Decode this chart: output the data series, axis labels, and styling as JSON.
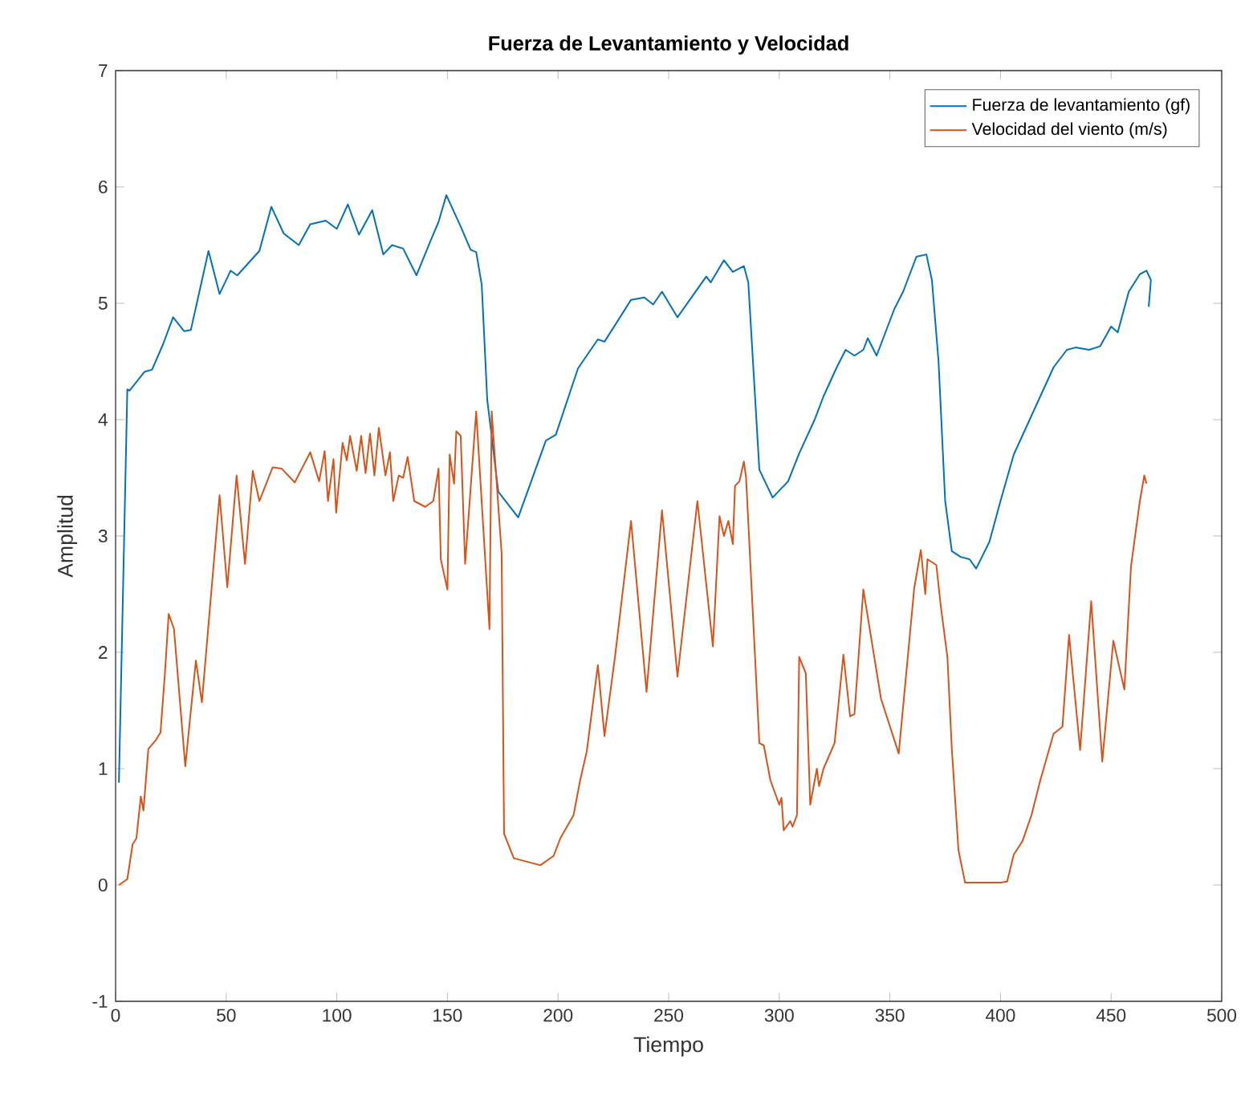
{
  "chart_data": {
    "type": "line",
    "title": "Fuerza de Levantamiento y Velocidad",
    "xlabel": "Tiempo",
    "ylabel": "Amplitud",
    "xlim": [
      0,
      500
    ],
    "ylim": [
      -1,
      7
    ],
    "xticks": [
      0,
      50,
      100,
      150,
      200,
      250,
      300,
      350,
      400,
      450,
      500
    ],
    "yticks": [
      -1,
      0,
      1,
      2,
      3,
      4,
      5,
      6,
      7
    ],
    "legend": "top right",
    "grid": false,
    "marker": "none",
    "line_style": "solid",
    "series": [
      {
        "name": "Fuerza de levantamiento (gf)",
        "color": "#0072bd",
        "x": [
          1.5,
          5.3,
          6.3,
          13,
          16.5,
          21.5,
          26,
          31,
          34,
          42,
          47,
          52,
          55,
          65,
          70.4,
          76,
          82.8,
          88,
          95,
          100,
          105,
          110,
          116,
          121,
          125,
          130,
          136,
          142,
          146,
          149.5,
          156,
          160.5,
          163,
          165.5,
          168,
          173,
          182,
          194.5,
          199,
          209,
          218,
          221,
          233,
          239,
          243,
          247,
          254,
          267,
          269,
          275,
          279,
          284,
          286,
          291,
          297,
          304,
          309,
          316,
          320,
          326,
          330,
          334,
          338,
          340,
          344,
          348,
          352,
          356,
          362,
          366.5,
          369,
          372,
          375,
          378,
          382,
          386,
          389,
          395,
          400,
          406,
          412,
          418,
          424,
          430,
          434,
          440,
          445,
          450,
          453,
          458,
          463,
          466,
          468,
          467
        ],
        "values": [
          0.88,
          4.26,
          4.25,
          4.41,
          4.43,
          4.65,
          4.88,
          4.76,
          4.77,
          5.45,
          5.08,
          5.28,
          5.24,
          5.45,
          5.83,
          5.6,
          5.5,
          5.68,
          5.71,
          5.64,
          5.85,
          5.59,
          5.8,
          5.42,
          5.5,
          5.47,
          5.24,
          5.52,
          5.7,
          5.93,
          5.66,
          5.46,
          5.44,
          5.16,
          4.17,
          3.38,
          3.16,
          3.82,
          3.87,
          4.44,
          4.69,
          4.67,
          5.03,
          5.05,
          4.99,
          5.1,
          4.88,
          5.23,
          5.18,
          5.37,
          5.27,
          5.32,
          5.18,
          3.57,
          3.33,
          3.47,
          3.71,
          4.0,
          4.2,
          4.45,
          4.6,
          4.55,
          4.6,
          4.7,
          4.55,
          4.75,
          4.95,
          5.1,
          5.4,
          5.42,
          5.2,
          4.5,
          3.3,
          2.87,
          2.82,
          2.8,
          2.72,
          2.95,
          3.3,
          3.7,
          3.95,
          4.2,
          4.45,
          4.6,
          4.62,
          4.6,
          4.63,
          4.8,
          4.75,
          5.1,
          5.25,
          5.28,
          5.2,
          4.97
        ]
      },
      {
        "name": "Velocidad del viento (m/s)",
        "color": "#d95319",
        "x": [
          1.5,
          5.3,
          7.7,
          9.4,
          11.4,
          12.6,
          14.8,
          18,
          20.3,
          22.3,
          24,
          26.4,
          31.5,
          36.3,
          39,
          47,
          50.5,
          54.7,
          58.5,
          62,
          65,
          71,
          75,
          81,
          88,
          92,
          94.5,
          96,
          98.5,
          99.7,
          102.6,
          104.5,
          106,
          109,
          111,
          113,
          115,
          117,
          119,
          122,
          124,
          125.5,
          128,
          130,
          132,
          135,
          140,
          143.6,
          146,
          147,
          150,
          151,
          153,
          154,
          156,
          158,
          163,
          169,
          170,
          174.5,
          175.6,
          180,
          192,
          198,
          201,
          204,
          207,
          210,
          213,
          218,
          221,
          226,
          233,
          240,
          247,
          254,
          263,
          270,
          273,
          275,
          277,
          279,
          280,
          282,
          284,
          285,
          291,
          293,
          296,
          300,
          301,
          302,
          305,
          306,
          308,
          309,
          312,
          314,
          317,
          318,
          320,
          325,
          329,
          332,
          334,
          338,
          346,
          354,
          361,
          364,
          366,
          367,
          371,
          373,
          376,
          378,
          381,
          384,
          400,
          403,
          406,
          410,
          414,
          418,
          424,
          428,
          431,
          436,
          441,
          446,
          451,
          456,
          459,
          463,
          465,
          466
        ],
        "values": [
          0.0,
          0.05,
          0.35,
          0.4,
          0.76,
          0.64,
          1.17,
          1.24,
          1.31,
          1.82,
          2.33,
          2.2,
          1.02,
          1.93,
          1.57,
          3.35,
          2.56,
          3.52,
          2.76,
          3.56,
          3.3,
          3.59,
          3.58,
          3.46,
          3.72,
          3.47,
          3.73,
          3.3,
          3.66,
          3.2,
          3.8,
          3.65,
          3.86,
          3.56,
          3.86,
          3.54,
          3.88,
          3.52,
          3.93,
          3.52,
          3.72,
          3.3,
          3.52,
          3.5,
          3.68,
          3.3,
          3.25,
          3.3,
          3.58,
          2.8,
          2.54,
          3.7,
          3.45,
          3.9,
          3.86,
          2.76,
          4.07,
          2.2,
          4.07,
          2.85,
          0.44,
          0.23,
          0.17,
          0.25,
          0.4,
          0.5,
          0.6,
          0.9,
          1.15,
          1.89,
          1.28,
          2.0,
          3.13,
          1.66,
          3.22,
          1.79,
          3.3,
          2.05,
          3.17,
          3.0,
          3.13,
          2.93,
          3.43,
          3.47,
          3.64,
          3.5,
          1.22,
          1.2,
          0.9,
          0.69,
          0.75,
          0.47,
          0.55,
          0.5,
          0.6,
          1.96,
          1.82,
          0.69,
          1.0,
          0.85,
          1.0,
          1.22,
          1.98,
          1.45,
          1.47,
          2.54,
          1.6,
          1.13,
          2.55,
          2.88,
          2.5,
          2.8,
          2.75,
          2.4,
          1.96,
          1.17,
          0.3,
          0.02,
          0.02,
          0.03,
          0.26,
          0.38,
          0.6,
          0.9,
          1.3,
          1.36,
          2.15,
          1.16,
          2.44,
          1.06,
          2.1,
          1.68,
          2.74,
          3.3,
          3.52,
          3.45
        ]
      }
    ]
  }
}
